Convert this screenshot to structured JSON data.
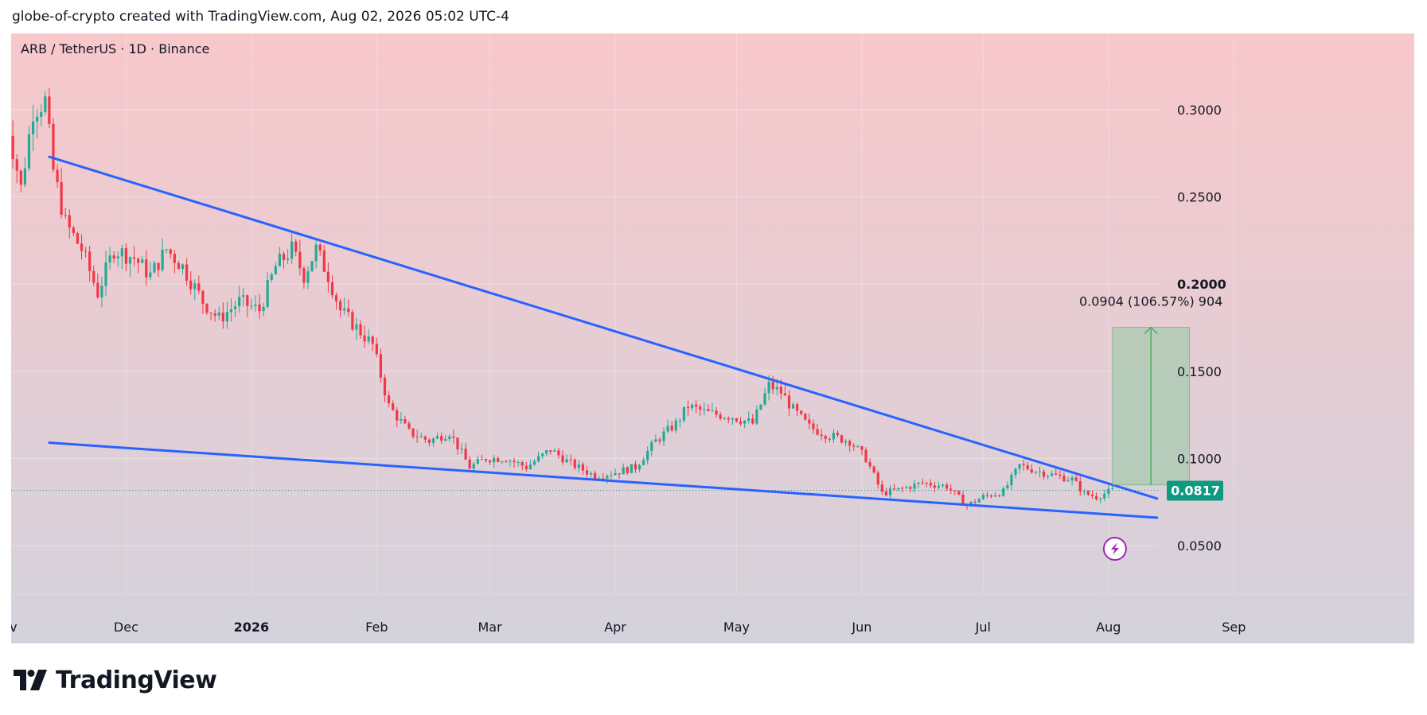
{
  "header": {
    "caption": "globe-of-crypto created with TradingView.com, Aug 02, 2026 05:02 UTC-4"
  },
  "footer": {
    "brand": "TradingView"
  },
  "icons": {
    "logo": "tradingview-logo-icon",
    "lightning": "lightning-bolt-icon"
  },
  "colors": {
    "up": "#22ab94",
    "down": "#f23645",
    "trendline": "#2962ff",
    "price_badge": "#0f9981",
    "measure_fill": "#a8cab0",
    "measure_line": "#2fa84f",
    "background_top": "#f8c8cb",
    "background_bottom": "#d4d2dc",
    "lightning": "#9c27b0"
  },
  "chart_data": {
    "type": "candlestick",
    "title": "ARB / TetherUS · 1D · Binance",
    "symbol": "ARB / TetherUS",
    "interval": "1D",
    "exchange": "Binance",
    "xaxis": {
      "type": "date",
      "range": [
        "2025-11-01",
        "2026-09-10"
      ],
      "tick_labels": [
        {
          "date": "2025-11-01",
          "label": "Nov",
          "bold": false
        },
        {
          "date": "2025-12-01",
          "label": "Dec",
          "bold": false
        },
        {
          "date": "2026-01-01",
          "label": "2026",
          "bold": true
        },
        {
          "date": "2026-02-01",
          "label": "Feb",
          "bold": false
        },
        {
          "date": "2026-03-01",
          "label": "Mar",
          "bold": false
        },
        {
          "date": "2026-04-01",
          "label": "Apr",
          "bold": false
        },
        {
          "date": "2026-05-01",
          "label": "May",
          "bold": false
        },
        {
          "date": "2026-06-01",
          "label": "Jun",
          "bold": false
        },
        {
          "date": "2026-07-01",
          "label": "Jul",
          "bold": false
        },
        {
          "date": "2026-08-01",
          "label": "Aug",
          "bold": false
        },
        {
          "date": "2026-09-01",
          "label": "Sep",
          "bold": false
        }
      ]
    },
    "yaxis": {
      "range": [
        0.0,
        0.33
      ],
      "ticks": [
        {
          "value": 0.05,
          "label": "0.0500",
          "bold": false
        },
        {
          "value": 0.1,
          "label": "0.1000",
          "bold": false
        },
        {
          "value": 0.15,
          "label": "0.1500",
          "bold": false
        },
        {
          "value": 0.2,
          "label": "0.2000",
          "bold": true
        },
        {
          "value": 0.25,
          "label": "0.2500",
          "bold": false
        },
        {
          "value": 0.3,
          "label": "0.3000",
          "bold": false
        }
      ]
    },
    "grid": true,
    "last_price": {
      "value": 0.0817,
      "label": "0.0817"
    },
    "close_anchors": [
      [
        "2025-11-01",
        0.3
      ],
      [
        "2025-11-05",
        0.255
      ],
      [
        "2025-11-08",
        0.3
      ],
      [
        "2025-11-11",
        0.305
      ],
      [
        "2025-11-13",
        0.265
      ],
      [
        "2025-11-16",
        0.235
      ],
      [
        "2025-11-20",
        0.22
      ],
      [
        "2025-11-24",
        0.195
      ],
      [
        "2025-11-28",
        0.22
      ],
      [
        "2025-12-03",
        0.215
      ],
      [
        "2025-12-07",
        0.205
      ],
      [
        "2025-12-11",
        0.22
      ],
      [
        "2025-12-15",
        0.21
      ],
      [
        "2025-12-20",
        0.19
      ],
      [
        "2025-12-24",
        0.18
      ],
      [
        "2025-12-29",
        0.19
      ],
      [
        "2026-01-03",
        0.185
      ],
      [
        "2026-01-07",
        0.21
      ],
      [
        "2026-01-11",
        0.22
      ],
      [
        "2026-01-14",
        0.205
      ],
      [
        "2026-01-17",
        0.22
      ],
      [
        "2026-01-20",
        0.205
      ],
      [
        "2026-01-23",
        0.185
      ],
      [
        "2026-01-27",
        0.175
      ],
      [
        "2026-01-31",
        0.165
      ],
      [
        "2026-02-04",
        0.13
      ],
      [
        "2026-02-09",
        0.115
      ],
      [
        "2026-02-14",
        0.11
      ],
      [
        "2026-02-19",
        0.115
      ],
      [
        "2026-02-24",
        0.095
      ],
      [
        "2026-02-28",
        0.1
      ],
      [
        "2026-03-05",
        0.1
      ],
      [
        "2026-03-10",
        0.095
      ],
      [
        "2026-03-16",
        0.105
      ],
      [
        "2026-03-21",
        0.097
      ],
      [
        "2026-03-27",
        0.09
      ],
      [
        "2026-04-01",
        0.092
      ],
      [
        "2026-04-06",
        0.095
      ],
      [
        "2026-04-11",
        0.11
      ],
      [
        "2026-04-16",
        0.12
      ],
      [
        "2026-04-19",
        0.13
      ],
      [
        "2026-04-24",
        0.126
      ],
      [
        "2026-04-30",
        0.124
      ],
      [
        "2026-05-05",
        0.12
      ],
      [
        "2026-05-09",
        0.142
      ],
      [
        "2026-05-12",
        0.138
      ],
      [
        "2026-05-15",
        0.128
      ],
      [
        "2026-05-19",
        0.118
      ],
      [
        "2026-05-24",
        0.113
      ],
      [
        "2026-05-29",
        0.11
      ],
      [
        "2026-06-02",
        0.1
      ],
      [
        "2026-06-06",
        0.08
      ],
      [
        "2026-06-10",
        0.082
      ],
      [
        "2026-06-16",
        0.086
      ],
      [
        "2026-06-22",
        0.084
      ],
      [
        "2026-06-27",
        0.073
      ],
      [
        "2026-07-01",
        0.078
      ],
      [
        "2026-07-06",
        0.081
      ],
      [
        "2026-07-10",
        0.096
      ],
      [
        "2026-07-14",
        0.093
      ],
      [
        "2026-07-19",
        0.09
      ],
      [
        "2026-07-23",
        0.088
      ],
      [
        "2026-07-26",
        0.08
      ],
      [
        "2026-07-29",
        0.078
      ],
      [
        "2026-08-02",
        0.0817
      ]
    ],
    "trendlines": [
      {
        "name": "upper",
        "start": {
          "date": "2025-11-12",
          "value": 0.273
        },
        "end": {
          "date": "2026-08-13",
          "value": 0.077
        }
      },
      {
        "name": "lower",
        "start": {
          "date": "2025-11-12",
          "value": 0.109
        },
        "end": {
          "date": "2026-08-13",
          "value": 0.066
        }
      }
    ],
    "price_range_measure": {
      "start_date": "2026-08-02",
      "end_date": "2026-08-21",
      "from": 0.0848,
      "to": 0.1752,
      "label": "0.0904 (106.57%) 904"
    },
    "event_marker": {
      "date": "2026-08-02",
      "icon": "lightning-bolt-icon"
    }
  }
}
